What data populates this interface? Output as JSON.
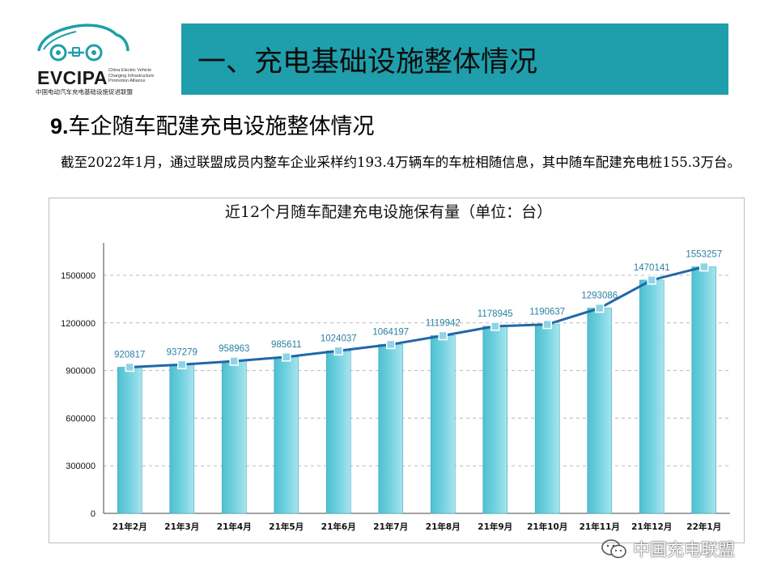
{
  "logo": {
    "brand": "EVCIPA",
    "english_lines": [
      "China Electric Vehicle",
      "Charging Infrastructure",
      "Promotion Alliance"
    ],
    "chinese": "中国电动汽车充电基础设施促进联盟",
    "color": "#1f9eab"
  },
  "header": {
    "title": "一、充电基础设施整体情况"
  },
  "section": {
    "number": "9.",
    "title": "车企随车配建充电设施整体情况"
  },
  "body_text": "截至2022年1月，通过联盟成员内整车企业采样约193.4万辆车的车桩相随信息，其中随车配建充电桩155.3万台。",
  "watermark": {
    "text": "中国充电联盟"
  },
  "colors": {
    "header_bg": "#1f9eab",
    "bar": "#6ed0de",
    "line": "#2167a8",
    "marker": "#8fd4e6",
    "label": "#2a80a3"
  },
  "chart_data": {
    "type": "bar",
    "title": "近12个月随车配建充电设施保有量（单位：台）",
    "categories": [
      "21年2月",
      "21年3月",
      "21年4月",
      "21年5月",
      "21年6月",
      "21年7月",
      "21年8月",
      "21年9月",
      "21年10月",
      "21年11月",
      "21年12月",
      "22年1月"
    ],
    "values": [
      920817,
      937279,
      958963,
      985611,
      1024037,
      1064197,
      1119942,
      1178945,
      1190637,
      1293086,
      1470141,
      1553257
    ],
    "overlay_line": true,
    "ylim": [
      0,
      1500000
    ],
    "yticks": [
      0,
      300000,
      600000,
      900000,
      1200000,
      1500000
    ],
    "xlabel": "",
    "ylabel": "",
    "grid": true,
    "legend": "none"
  }
}
